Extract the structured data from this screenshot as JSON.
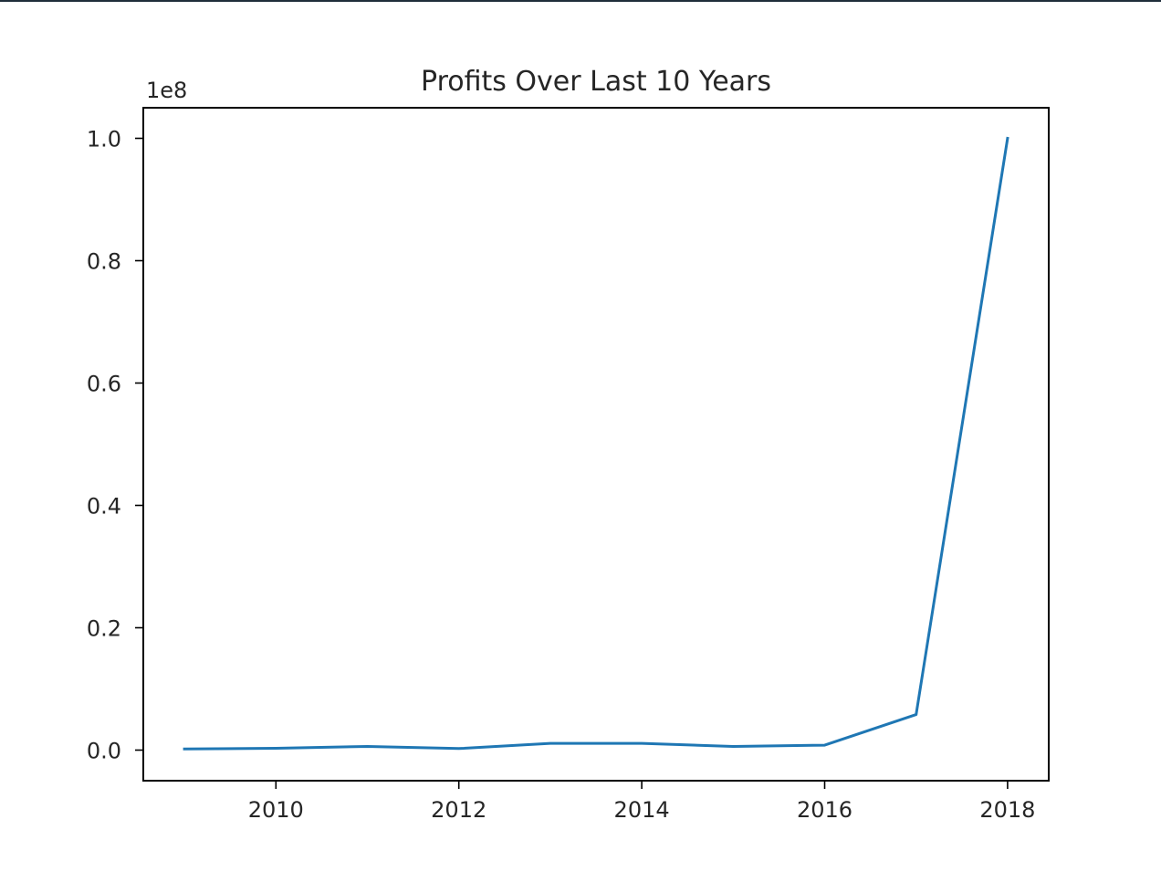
{
  "chart_data": {
    "type": "line",
    "title": "Profits Over Last 10 Years",
    "xlabel": "",
    "ylabel": "",
    "y_offset_label": "1e8",
    "x": [
      2009,
      2010,
      2011,
      2012,
      2013,
      2014,
      2015,
      2016,
      2017,
      2018
    ],
    "series": [
      {
        "values": [
          200000,
          300000,
          600000,
          250000,
          1100000,
          1100000,
          600000,
          800000,
          5800000,
          100000000
        ]
      }
    ],
    "xlim": [
      2008.55,
      2018.45
    ],
    "ylim": [
      -5000000,
      105000000
    ],
    "x_ticks": [
      2010,
      2012,
      2014,
      2016,
      2018
    ],
    "x_tick_labels": [
      "2010",
      "2012",
      "2014",
      "2016",
      "2018"
    ],
    "y_ticks": [
      0,
      20000000,
      40000000,
      60000000,
      80000000,
      100000000
    ],
    "y_tick_labels": [
      "0.0",
      "0.2",
      "0.4",
      "0.6",
      "0.8",
      "1.0"
    ],
    "grid": false,
    "line_color": "#1f77b4"
  }
}
